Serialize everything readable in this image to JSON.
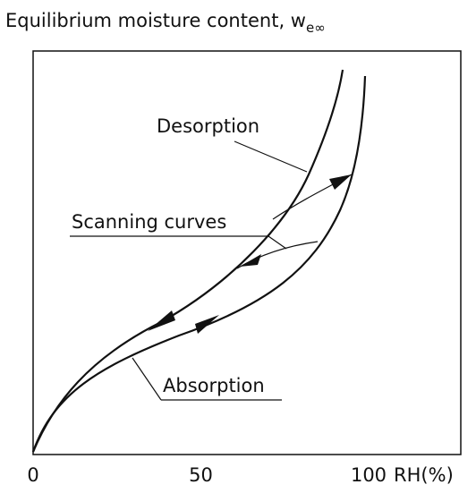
{
  "title": "Equilibrium moisture content, w",
  "title_subscript": "e∞",
  "labels": {
    "desorption": "Desorption",
    "scanning": "Scanning curves",
    "absorption": "Absorption"
  },
  "x_axis": {
    "ticks": [
      0,
      50,
      100
    ],
    "label": "RH(%)"
  }
}
